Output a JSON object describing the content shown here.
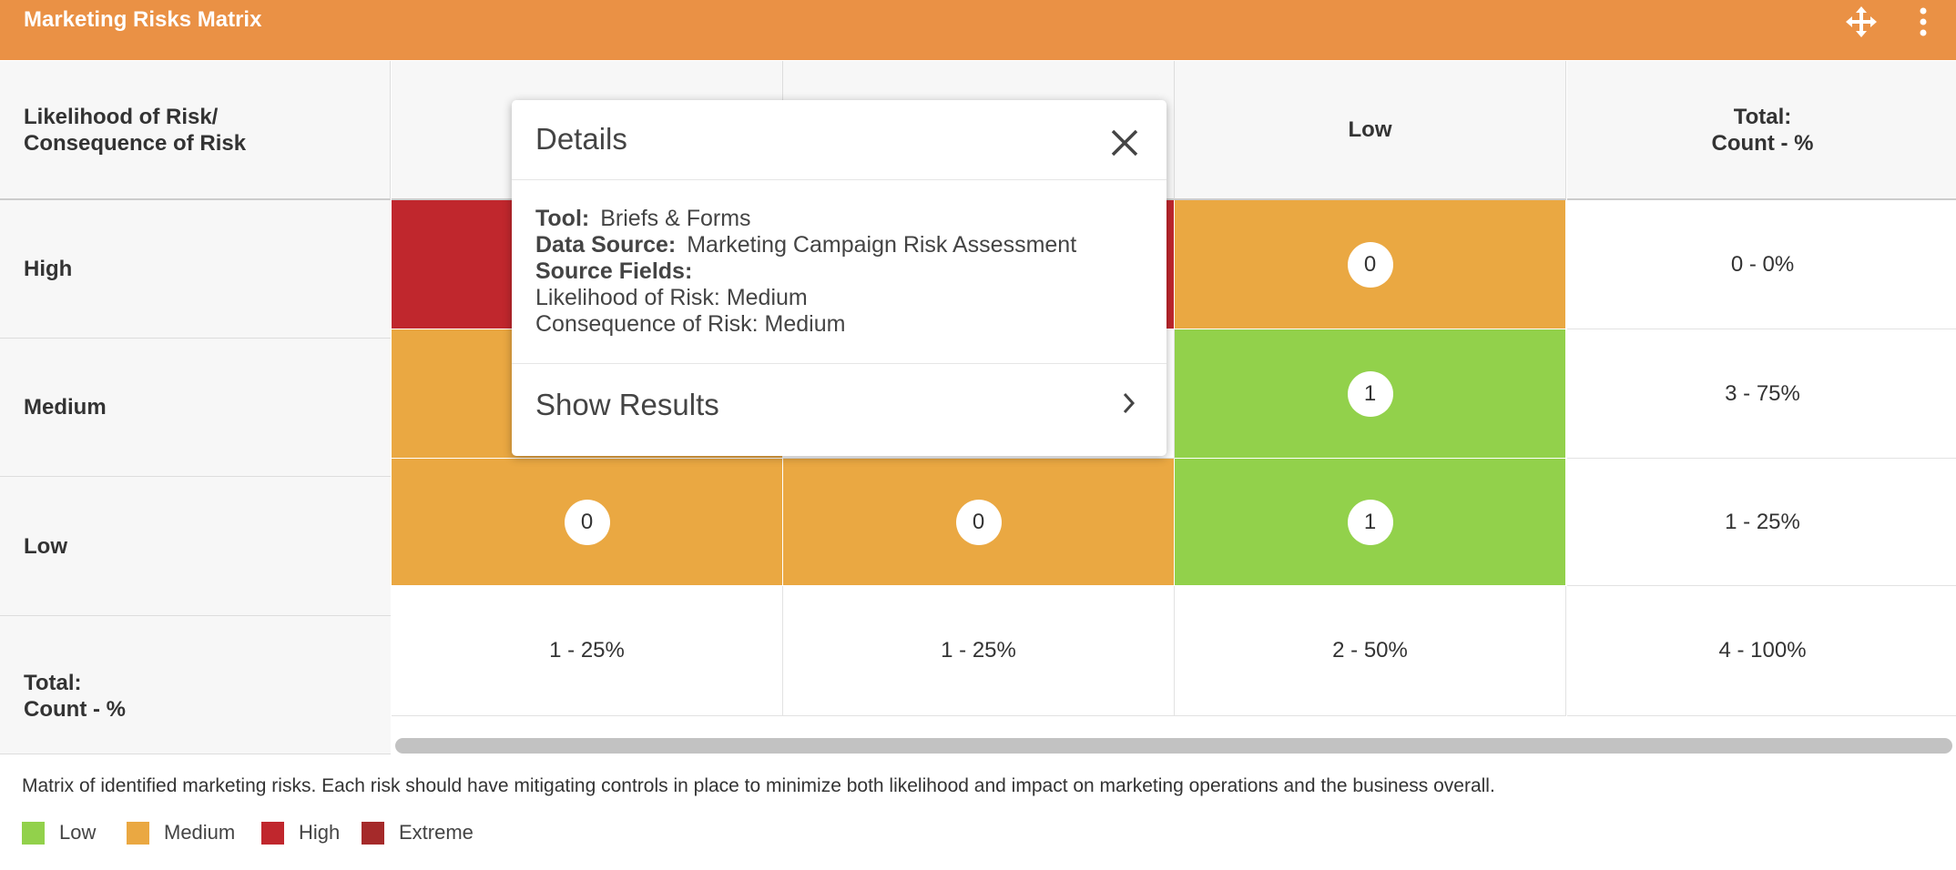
{
  "header": {
    "title": "Marketing Risks Matrix"
  },
  "table": {
    "corner": "Likelihood of Risk/\nConsequence of Risk",
    "columns": [
      null,
      null,
      "Low",
      "Total:\nCount - %"
    ],
    "rows": [
      {
        "label": "High",
        "cells": [
          {
            "color": "#c0272d"
          },
          {
            "color": "#c0272d"
          },
          {
            "value": 0,
            "color": "#eaa842"
          }
        ],
        "total": "0 - 0%"
      },
      {
        "label": "Medium",
        "cells": [
          {
            "color": "#eaa842"
          },
          null,
          {
            "value": 1,
            "color": "#92d14b"
          }
        ],
        "total": "3 - 75%"
      },
      {
        "label": "Low",
        "cells": [
          {
            "value": 0,
            "color": "#eaa842"
          },
          {
            "value": 0,
            "color": "#eaa842"
          },
          {
            "value": 1,
            "color": "#92d14b"
          }
        ],
        "total": "1 - 25%"
      }
    ],
    "totals_label": "Total:\nCount - %",
    "totals": [
      "1 - 25%",
      "1 - 25%",
      "2 - 50%",
      "4 - 100%"
    ]
  },
  "popup": {
    "title": "Details",
    "fields": [
      {
        "label": "Tool:",
        "value": "Briefs & Forms"
      },
      {
        "label": "Data Source:",
        "value": "Marketing Campaign Risk Assessment"
      }
    ],
    "source_fields_label": "Source Fields:",
    "source_fields": [
      "Likelihood of Risk: Medium",
      "Consequence of Risk: Medium"
    ],
    "action": "Show Results"
  },
  "footer": {
    "description": "Matrix of identified marketing risks. Each risk should have mitigating controls in place to minimize both likelihood and impact on marketing operations and the business overall.",
    "legend": [
      {
        "label": "Low",
        "color": "#92d14b"
      },
      {
        "label": "Medium",
        "color": "#eaa842"
      },
      {
        "label": "High",
        "color": "#c0272d"
      },
      {
        "label": "Extreme",
        "color": "#a52a2a"
      }
    ]
  }
}
